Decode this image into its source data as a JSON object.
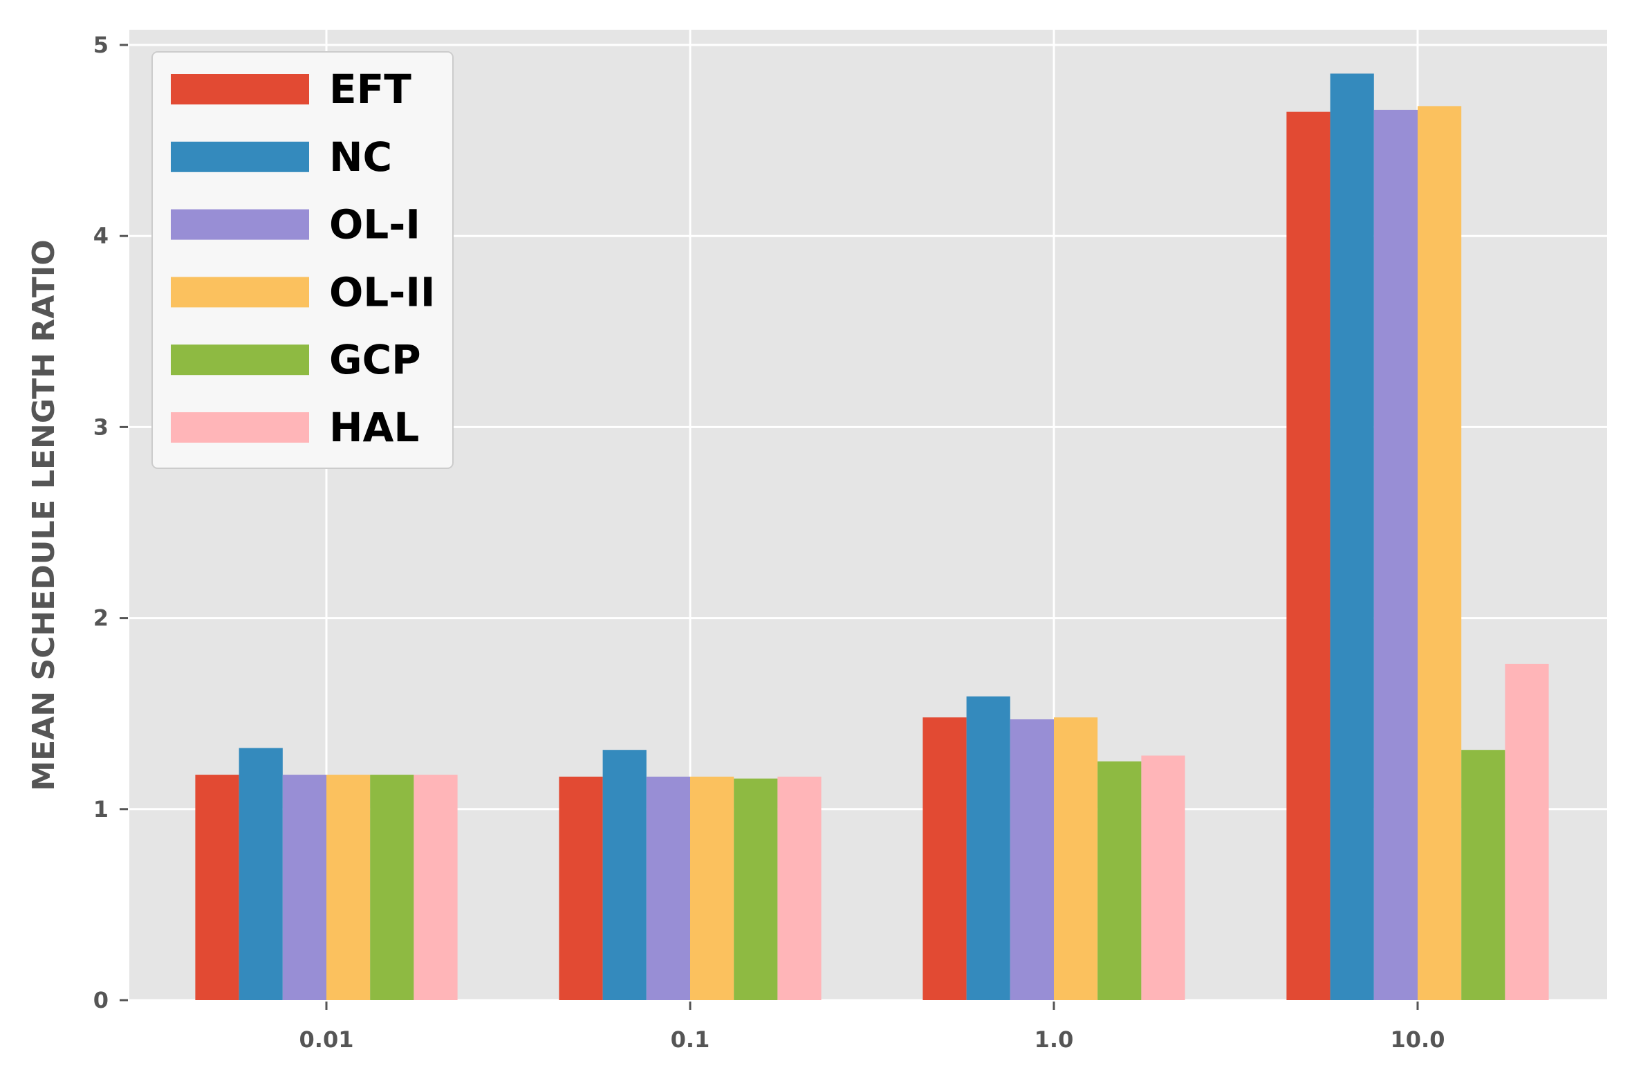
{
  "chart_data": {
    "type": "bar",
    "title": "",
    "xlabel": "",
    "ylabel": "MEAN SCHEDULE LENGTH RATIO",
    "categories": [
      "0.01",
      "0.1",
      "1.0",
      "10.0"
    ],
    "ylim": [
      0,
      5
    ],
    "yticks": [
      "0",
      "1",
      "2",
      "3",
      "4",
      "5"
    ],
    "grid": true,
    "legend_position": "top-left",
    "series": [
      {
        "name": "EFT",
        "color": "#E24A33",
        "values": [
          1.18,
          1.17,
          1.48,
          4.65
        ]
      },
      {
        "name": "NC",
        "color": "#348ABD",
        "values": [
          1.32,
          1.31,
          1.59,
          4.85
        ]
      },
      {
        "name": "OL-I",
        "color": "#988ED5",
        "values": [
          1.18,
          1.17,
          1.47,
          4.66
        ]
      },
      {
        "name": "OL-II",
        "color": "#FBC15E",
        "values": [
          1.18,
          1.17,
          1.48,
          4.68
        ]
      },
      {
        "name": "GCP",
        "color": "#8EBA42",
        "values": [
          1.18,
          1.16,
          1.25,
          1.31
        ]
      },
      {
        "name": "HAL",
        "color": "#FFB5B8",
        "values": [
          1.18,
          1.17,
          1.28,
          1.76
        ]
      }
    ]
  }
}
